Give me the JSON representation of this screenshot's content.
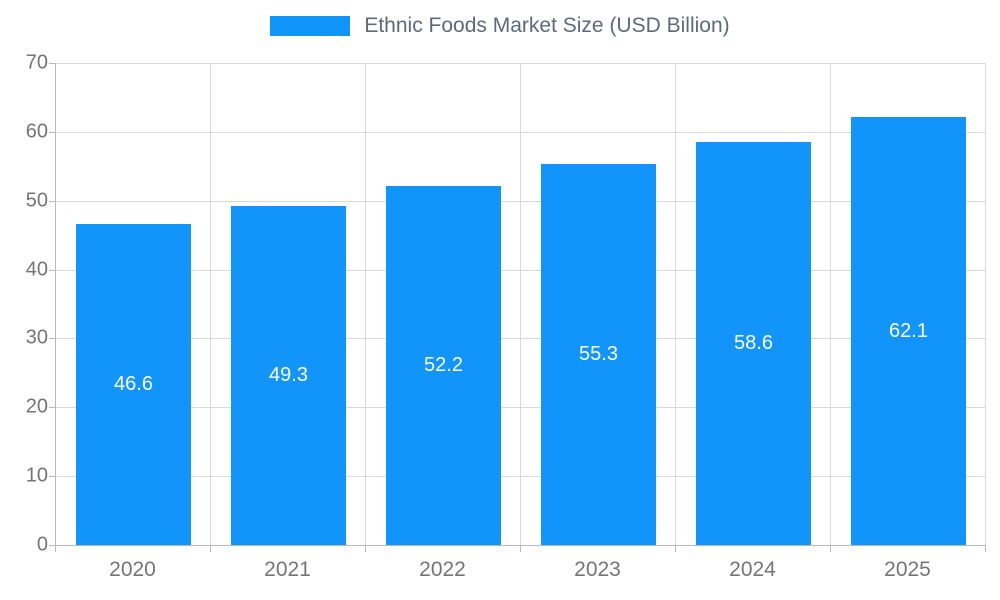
{
  "chart_data": {
    "type": "bar",
    "title": "Ethnic Foods Market Size (USD Billion)",
    "categories": [
      "2020",
      "2021",
      "2022",
      "2023",
      "2024",
      "2025"
    ],
    "values": [
      46.6,
      49.3,
      52.2,
      55.3,
      58.6,
      62.1
    ],
    "xlabel": "",
    "ylabel": "",
    "ylim": [
      0,
      70
    ],
    "ytick_step": 10,
    "yticks": [
      0,
      10,
      20,
      30,
      40,
      50,
      60,
      70
    ],
    "grid": true,
    "legend_position": "top",
    "bar_color": "#1295fa",
    "value_label_color": "#ffffff",
    "tick_label_color": "#757575",
    "title_color": "#5b6b7c",
    "grid_color": "#d9d9d9"
  }
}
